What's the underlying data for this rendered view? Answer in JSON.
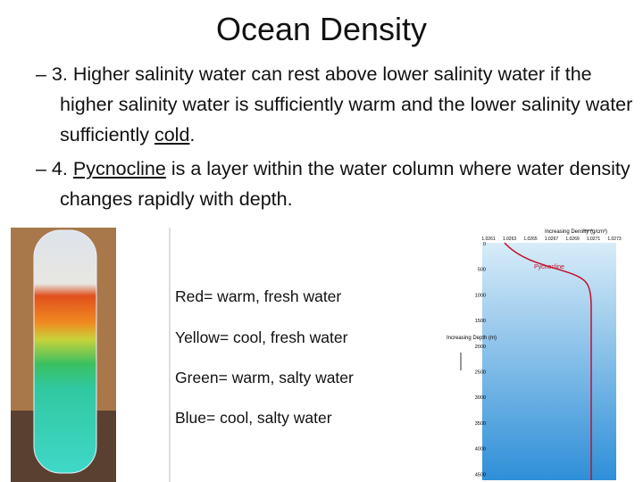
{
  "title": "Ocean Density",
  "bullets": [
    {
      "marker": "– 3.",
      "parts": [
        "Higher salinity water can rest above lower salinity water if the higher salinity water is sufficiently warm and the lower salinity water sufficiently ",
        "cold",
        "."
      ]
    },
    {
      "marker": "– 4.",
      "parts": [
        "",
        "Pycnocline",
        " is a layer within the water column where water density changes rapidly with depth."
      ]
    }
  ],
  "legend": [
    "Red= warm, fresh water",
    "Yellow= cool, fresh water",
    "Green= warm, salty water",
    "Blue= cool, salty water"
  ],
  "figure": {
    "x_label": "Increasing Density (g/cm³)",
    "y_label": "Increasing Depth (m)",
    "annotation": "Pycnocline",
    "x_ticks": [
      "1.0261",
      "1.0263",
      "1.0265",
      "1.0267",
      "1.0269",
      "1.0271",
      "1.0273"
    ],
    "y_ticks": [
      "0",
      "500",
      "1000",
      "1500",
      "2000",
      "2500",
      "3000",
      "3500",
      "4000",
      "4500"
    ]
  }
}
